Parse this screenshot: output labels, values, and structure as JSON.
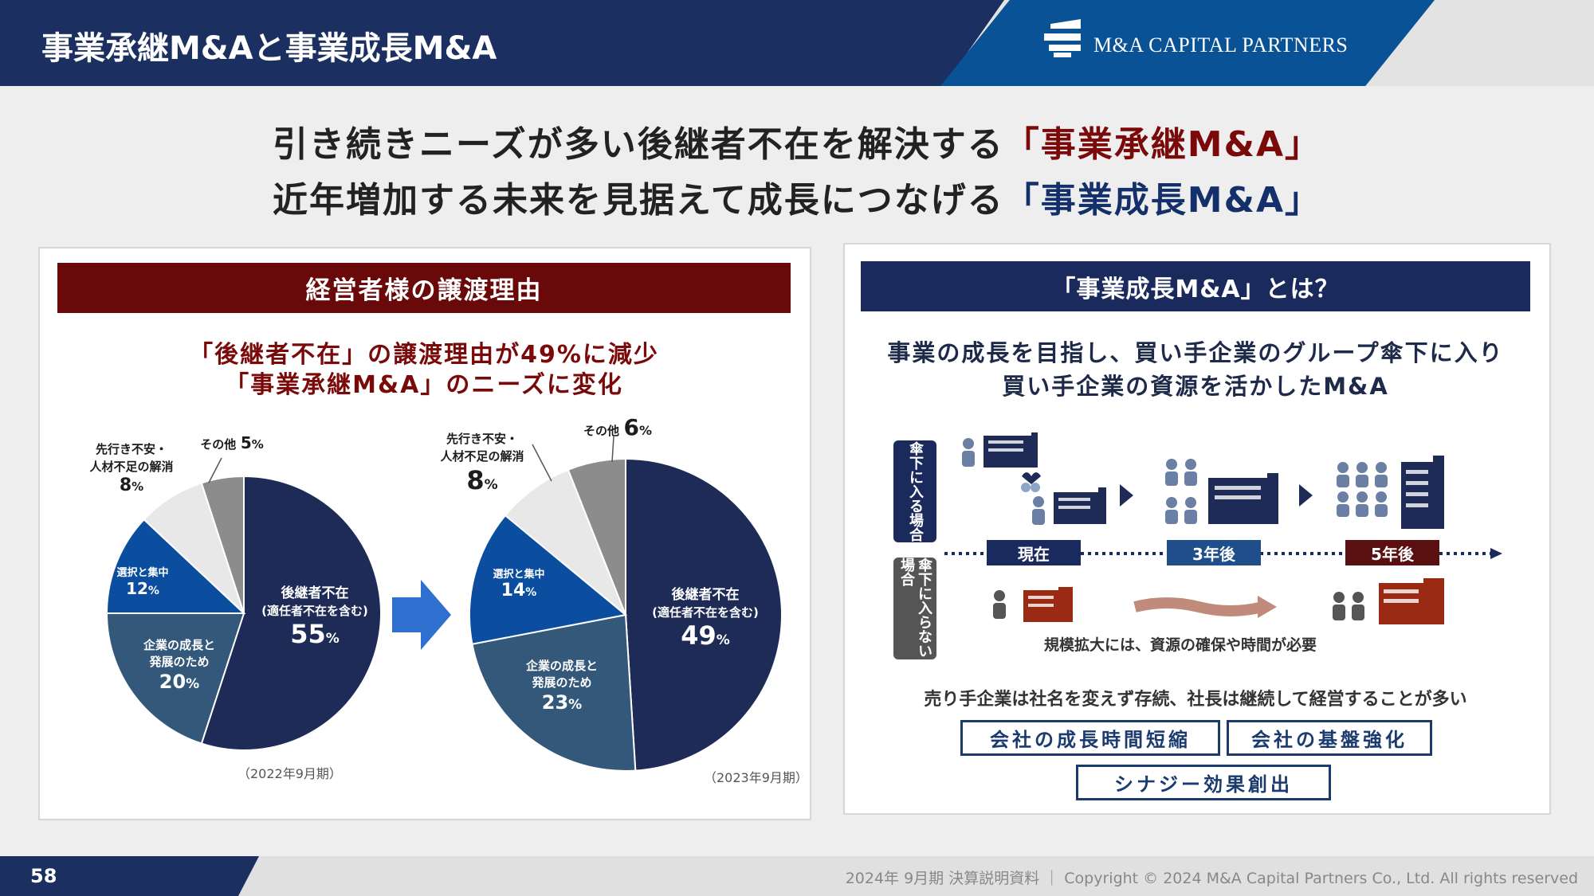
{
  "header": {
    "title": "事業承継M&Aと事業成長M&A",
    "logo_text": "M&A CAPITAL PARTNERS"
  },
  "headline": {
    "line1_prefix": "引き続きニーズが多い後継者不在を解決する",
    "line1_emph": "「事業承継M&A」",
    "line2_prefix": "近年増加する未来を見据えて成長につなげる",
    "line2_emph": "「事業成長M&A」"
  },
  "left_panel": {
    "heading": "経営者様の譲渡理由",
    "subtitle_line1": "「後継者不在」の譲渡理由が49%に減少",
    "subtitle_line2": "「事業承継M&A」のニーズに変化",
    "charts": [
      {
        "period": "（2022年9月期）",
        "slices": [
          {
            "name": "後継者不在",
            "note": "(適任者不在を含む)",
            "value": 55,
            "color": "#1f2b57"
          },
          {
            "name": "企業の成長と\n発展のため",
            "value": 20,
            "color": "#33587a"
          },
          {
            "name": "選択と集中",
            "value": 12,
            "color": "#0b4ea0"
          },
          {
            "name": "先行き不安・\n人材不足の解消",
            "value": 8,
            "color": "#e8e8e8"
          },
          {
            "name": "その他",
            "value": 5,
            "color": "#8c8c8c"
          }
        ]
      },
      {
        "period": "（2023年9月期）",
        "slices": [
          {
            "name": "後継者不在",
            "note": "(適任者不在を含む)",
            "value": 49,
            "color": "#1f2b57"
          },
          {
            "name": "企業の成長と\n発展のため",
            "value": 23,
            "color": "#33587a"
          },
          {
            "name": "選択と集中",
            "value": 14,
            "color": "#0b4ea0"
          },
          {
            "name": "先行き不安・\n人材不足の解消",
            "value": 8,
            "color": "#e8e8e8"
          },
          {
            "name": "その他",
            "value": 6,
            "color": "#8c8c8c"
          }
        ]
      }
    ],
    "labels": {
      "succ": "後継者不在",
      "succ_note": "(適任者不在を含む)",
      "growth_l1": "企業の成長と",
      "growth_l2": "発展のため",
      "focus": "選択と集中",
      "anx_l1": "先行き不安・",
      "anx_l2": "人材不足の解消",
      "other": "その他",
      "pct": "%",
      "c1": {
        "succ": "55",
        "growth": "20",
        "focus": "12",
        "anx": "8",
        "other": "5"
      },
      "c2": {
        "succ": "49",
        "growth": "23",
        "focus": "14",
        "anx": "8",
        "other": "6"
      }
    }
  },
  "right_panel": {
    "heading": "「事業成長M&A」とは？",
    "subtitle_line1": "事業の成長を目指し、買い手企業のグループ傘下に入り",
    "subtitle_line2": "買い手企業の資源を活かしたM&A",
    "tag_with": "傘下に入る場合",
    "tag_without": "傘下に入らない場合",
    "timeline": [
      "現在",
      "3年後",
      "5年後"
    ],
    "note": "規模拡大には、資源の確保や時間が必要",
    "statement": "売り手企業は社名を変えず存続、社長は継続して経営することが多い",
    "benefits": [
      "会社の成長時間短縮",
      "会社の基盤強化",
      "シナジー効果創出"
    ]
  },
  "footer": {
    "page": "58",
    "copyright": "2024年 9月期 決算説明資料 ｜ Copyright © 2024 M&A Capital Partners Co., Ltd. All rights reserved"
  },
  "colors": {
    "navy": "#1b3060",
    "accent_blue": "#0a5296",
    "maroon": "#690909",
    "arrow_blue": "#2f6fd0"
  }
}
